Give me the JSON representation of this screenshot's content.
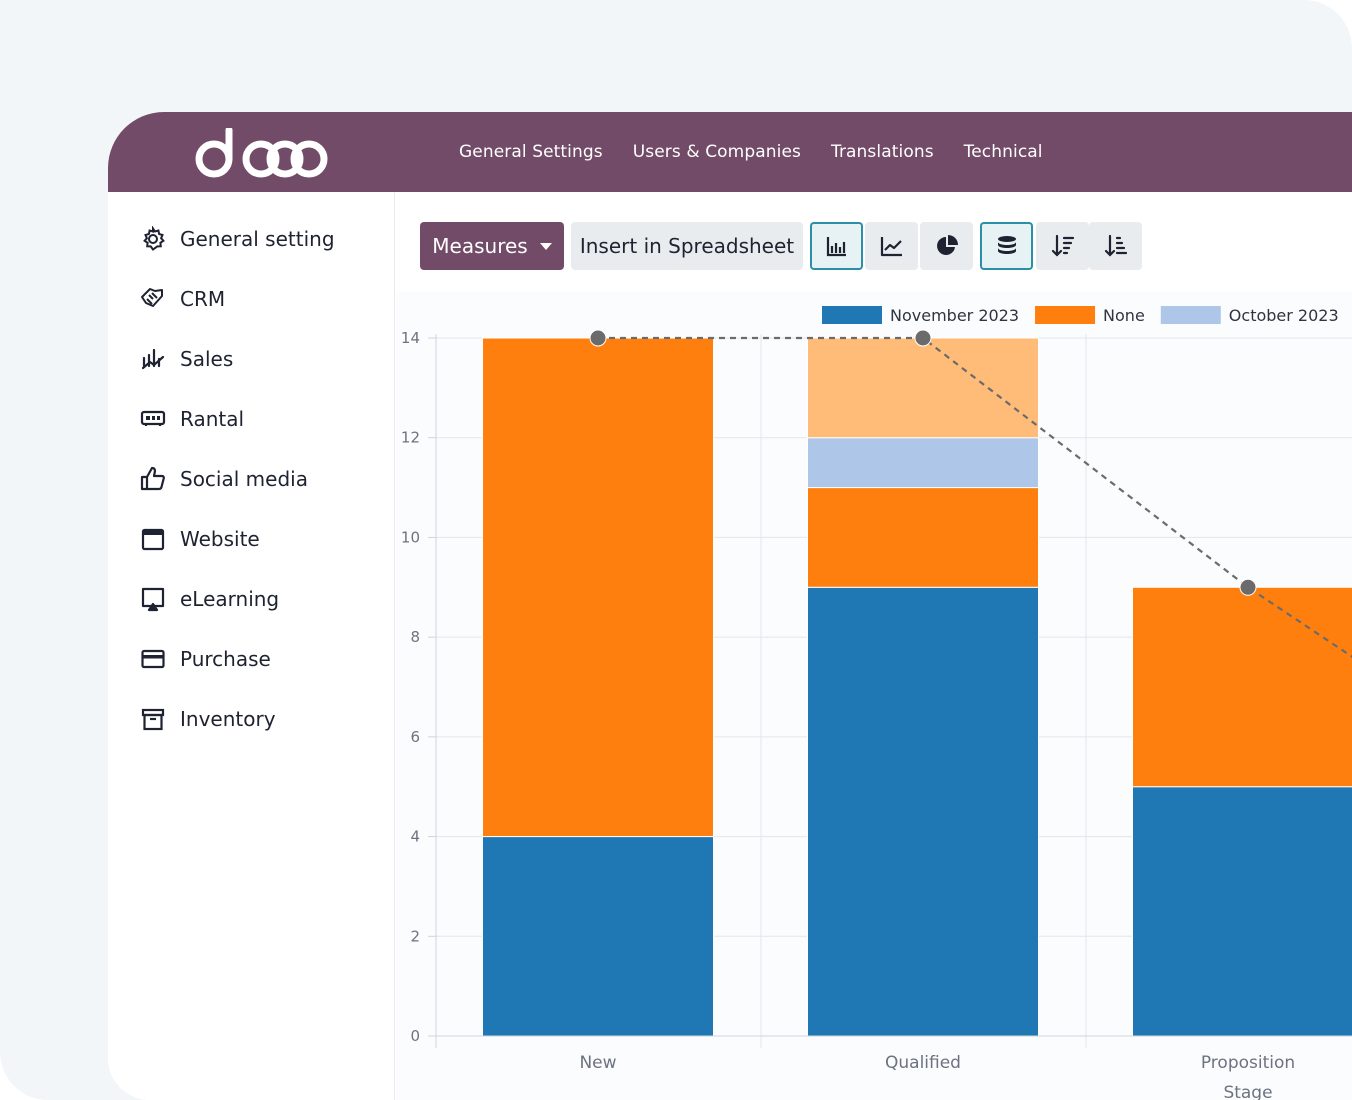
{
  "brand": {
    "logo_text": "odoo",
    "color": "#714b67"
  },
  "topnav": {
    "items": [
      "General Settings",
      "Users & Companies",
      "Translations",
      "Technical"
    ]
  },
  "sidebar": {
    "items": [
      {
        "label": "General setting",
        "icon": "gear-icon"
      },
      {
        "label": "CRM",
        "icon": "handshake-icon"
      },
      {
        "label": "Sales",
        "icon": "sales-chart-icon"
      },
      {
        "label": "Rantal",
        "icon": "rental-icon"
      },
      {
        "label": "Social media",
        "icon": "thumbs-up-icon"
      },
      {
        "label": "Website",
        "icon": "browser-window-icon"
      },
      {
        "label": "eLearning",
        "icon": "screen-learning-icon"
      },
      {
        "label": "Purchase",
        "icon": "credit-card-icon"
      },
      {
        "label": "Inventory",
        "icon": "archive-box-icon"
      }
    ]
  },
  "toolbar": {
    "measures_label": "Measures",
    "insert_label": "Insert in Spreadsheet",
    "view_icons": [
      {
        "icon": "bar-chart-icon",
        "active": true
      },
      {
        "icon": "line-chart-icon",
        "active": false
      },
      {
        "icon": "pie-chart-icon",
        "active": false
      },
      {
        "icon": "stack-icon",
        "active": true
      },
      {
        "icon": "sort-descending-icon",
        "active": false
      },
      {
        "icon": "sort-ascending-icon",
        "active": false
      }
    ]
  },
  "chart_data": {
    "type": "bar",
    "stacked": true,
    "categories": [
      "New",
      "Qualified",
      "Proposition"
    ],
    "xlabel": "Stage",
    "ylabel": "",
    "ylim": [
      0,
      14
    ],
    "yticks": [
      0,
      2,
      4,
      6,
      8,
      10,
      12,
      14
    ],
    "grid": true,
    "legend_position": "top-right",
    "series": [
      {
        "name": "November 2023",
        "color": "#1f77b4",
        "values": [
          4,
          9,
          5
        ]
      },
      {
        "name": "None",
        "color": "#ff7f0e",
        "values": [
          10,
          2,
          4
        ]
      },
      {
        "name": "October 2023",
        "color": "#aec7e8",
        "values": [
          0,
          1,
          0
        ]
      },
      {
        "name": "",
        "color": "#ffbb78",
        "values": [
          0,
          2,
          0
        ]
      }
    ],
    "totals_line": {
      "values": [
        14,
        14,
        9
      ],
      "color": "#6b6b6b",
      "style": "dashed"
    }
  }
}
